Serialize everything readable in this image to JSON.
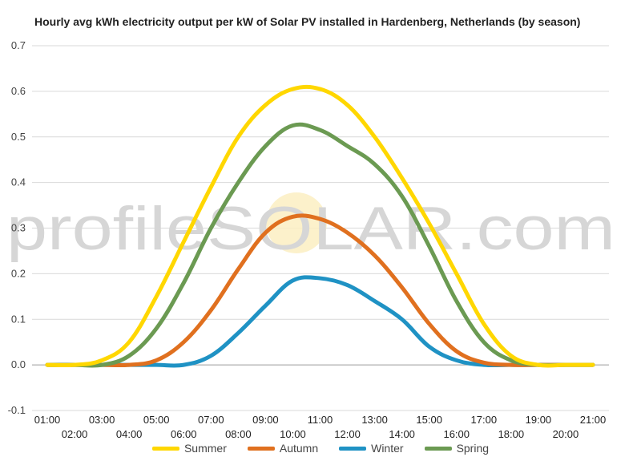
{
  "title": "Hourly avg kWh electricity output per kW of Solar PV installed in Hardenberg, Netherlands (by season)",
  "watermark": "profileSOLAR.com",
  "chart_data": {
    "type": "line",
    "title": "Hourly avg kWh electricity output per kW of Solar PV installed in Hardenberg, Netherlands (by season)",
    "xlabel": "",
    "ylabel": "",
    "ylim": [
      -0.1,
      0.7
    ],
    "yticks": [
      -0.1,
      0.0,
      0.1,
      0.2,
      0.3,
      0.4,
      0.5,
      0.6,
      0.7
    ],
    "grid": true,
    "legend_position": "bottom",
    "x": [
      "01:00",
      "02:00",
      "03:00",
      "04:00",
      "05:00",
      "06:00",
      "07:00",
      "08:00",
      "09:00",
      "10:00",
      "11:00",
      "12:00",
      "13:00",
      "14:00",
      "15:00",
      "16:00",
      "17:00",
      "18:00",
      "19:00",
      "20:00",
      "21:00"
    ],
    "series": [
      {
        "name": "Summer",
        "color": "#ffd700",
        "values": [
          0,
          0,
          0.01,
          0.05,
          0.15,
          0.27,
          0.39,
          0.5,
          0.57,
          0.605,
          0.605,
          0.57,
          0.5,
          0.41,
          0.31,
          0.2,
          0.09,
          0.02,
          0,
          0,
          0
        ]
      },
      {
        "name": "Autumn",
        "color": "#e0701f",
        "values": [
          0,
          0,
          0,
          0,
          0.01,
          0.05,
          0.12,
          0.21,
          0.29,
          0.325,
          0.32,
          0.29,
          0.24,
          0.17,
          0.09,
          0.03,
          0.005,
          0,
          0,
          0,
          0
        ]
      },
      {
        "name": "Winter",
        "color": "#1f92c4",
        "values": [
          0,
          0,
          0,
          0,
          0,
          0,
          0.02,
          0.07,
          0.13,
          0.185,
          0.19,
          0.175,
          0.14,
          0.1,
          0.04,
          0.01,
          0,
          0,
          0,
          0,
          0
        ]
      },
      {
        "name": "Spring",
        "color": "#6b9a52",
        "values": [
          0,
          0,
          0,
          0.02,
          0.08,
          0.18,
          0.3,
          0.4,
          0.48,
          0.525,
          0.515,
          0.48,
          0.44,
          0.37,
          0.26,
          0.14,
          0.05,
          0.01,
          0,
          0,
          0
        ]
      }
    ]
  }
}
